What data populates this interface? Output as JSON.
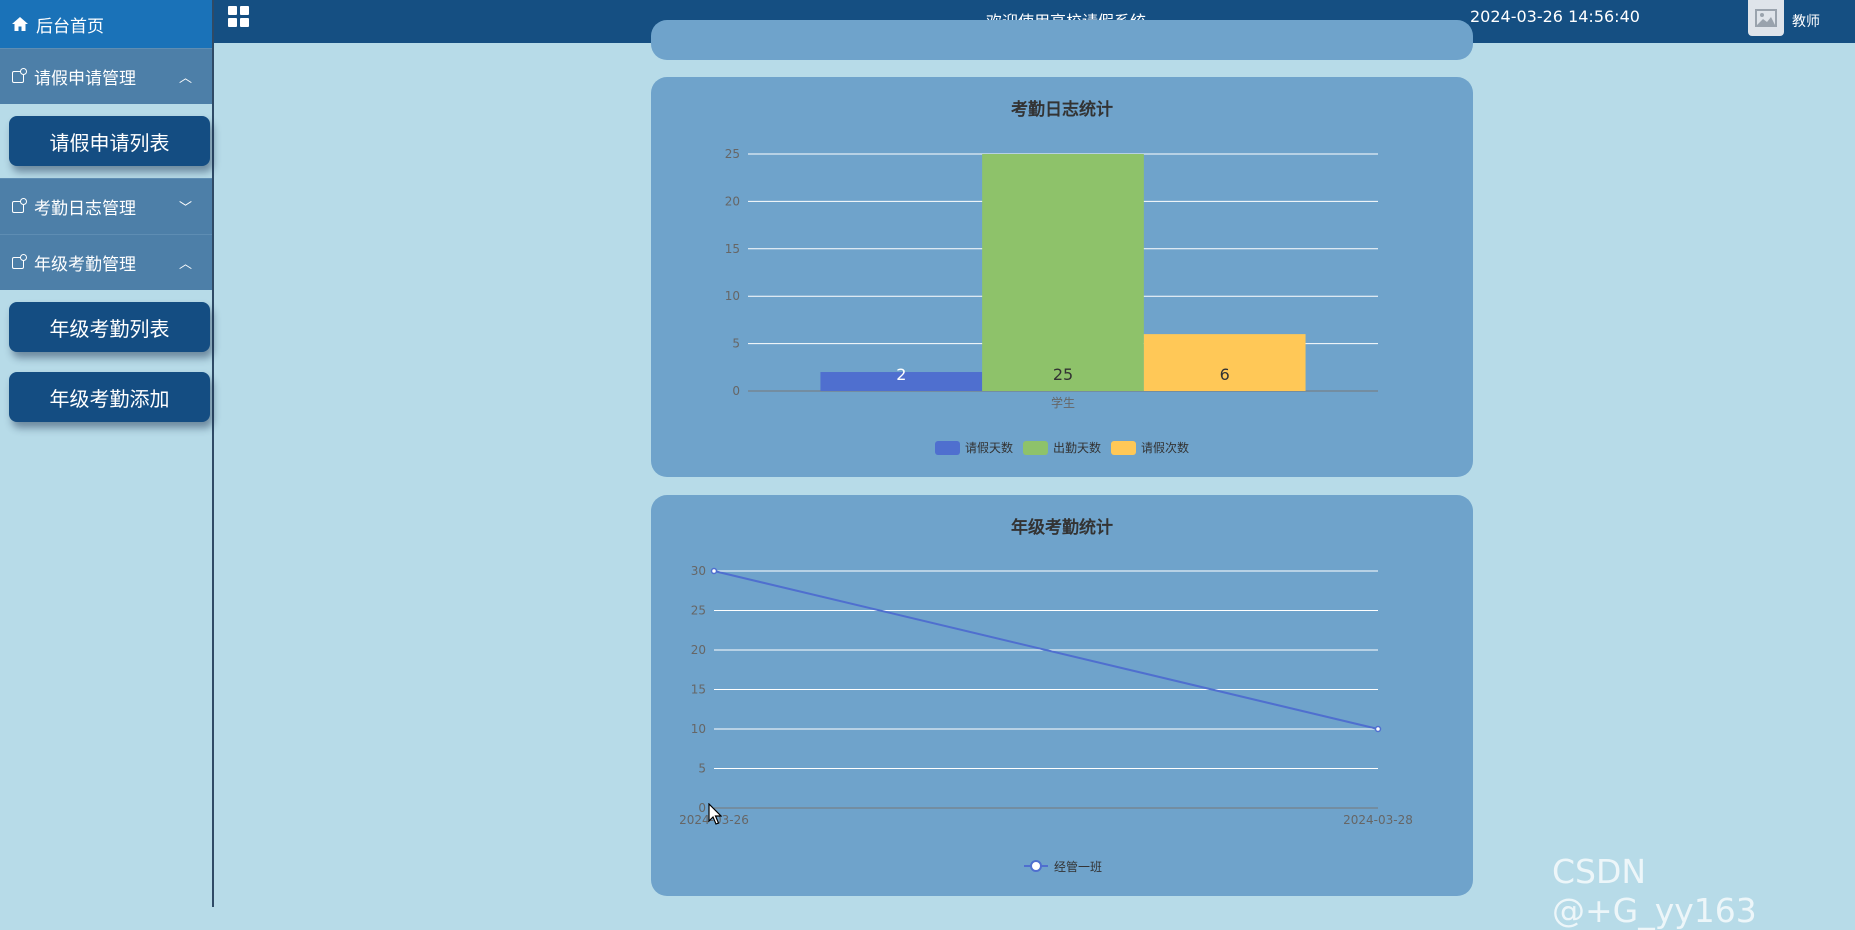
{
  "sidebar": {
    "home_label": "后台首页",
    "groups": [
      {
        "label": "请假申请管理",
        "expanded": true,
        "items": [
          "请假申请列表"
        ]
      },
      {
        "label": "考勤日志管理",
        "expanded": false,
        "items": []
      },
      {
        "label": "年级考勤管理",
        "expanded": true,
        "items": [
          "年级考勤列表",
          "年级考勤添加"
        ]
      }
    ]
  },
  "header": {
    "title": "欢迎使用高校请假系统",
    "datetime": "2024-03-26 14:56:40",
    "user_role": "教师"
  },
  "watermark": "CSDN @+G_yy163",
  "colors": {
    "header": "#154f82",
    "card": "#6fa3cb",
    "series_blue": "#4f6fcf",
    "series_green": "#8ec26a",
    "series_yellow": "#ffc857"
  },
  "chart_data": [
    {
      "type": "bar",
      "title": "考勤日志统计",
      "categories": [
        "学生"
      ],
      "series": [
        {
          "name": "请假天数",
          "values": [
            2
          ]
        },
        {
          "name": "出勤天数",
          "values": [
            25
          ]
        },
        {
          "name": "请假次数",
          "values": [
            6
          ]
        }
      ],
      "ylim": [
        0,
        25
      ],
      "yticks": [
        0,
        5,
        10,
        15,
        20,
        25
      ],
      "grid": true,
      "legend": "bottom"
    },
    {
      "type": "line",
      "title": "年级考勤统计",
      "x": [
        "2024-03-26",
        "2024-03-28"
      ],
      "series": [
        {
          "name": "经管一班",
          "values": [
            30,
            10
          ]
        }
      ],
      "ylim": [
        0,
        30
      ],
      "yticks": [
        0,
        5,
        10,
        15,
        20,
        25,
        30
      ],
      "grid": true,
      "legend": "bottom"
    }
  ]
}
